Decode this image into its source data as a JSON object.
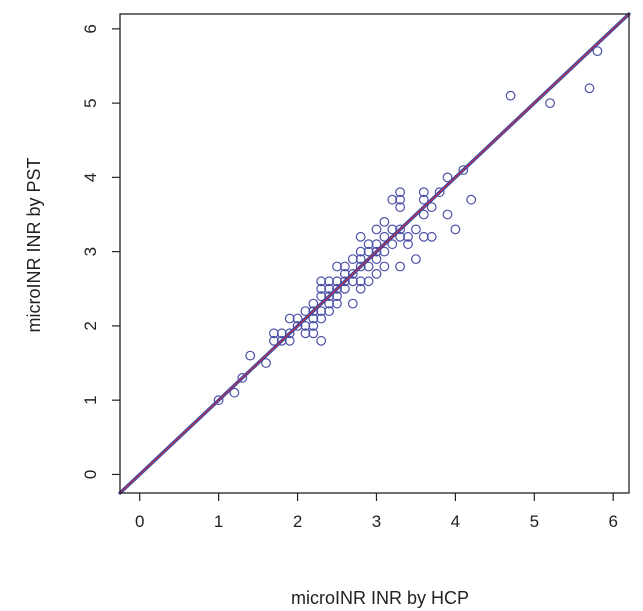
{
  "chart_data": {
    "type": "scatter",
    "title": "",
    "xlabel": "microINR INR by HCP",
    "ylabel": "microINR INR by PST",
    "xlim": [
      -0.25,
      6.2
    ],
    "ylim": [
      -0.25,
      6.2
    ],
    "xticks": [
      0,
      1,
      2,
      3,
      4,
      5,
      6
    ],
    "yticks": [
      0,
      1,
      2,
      3,
      4,
      5,
      6
    ],
    "grid": false,
    "legend": "none",
    "colors": {
      "points": "#4a50a8",
      "line_outer": "#3a4aa8",
      "line_inner": "#c0304a",
      "axes": "#222222"
    },
    "reference_line": {
      "type": "identity",
      "slope": 1,
      "intercept": 0
    },
    "points": [
      [
        1.0,
        1.0
      ],
      [
        1.2,
        1.1
      ],
      [
        1.3,
        1.3
      ],
      [
        1.4,
        1.6
      ],
      [
        1.6,
        1.5
      ],
      [
        1.7,
        1.8
      ],
      [
        1.7,
        1.9
      ],
      [
        1.8,
        1.8
      ],
      [
        1.8,
        1.9
      ],
      [
        1.9,
        1.9
      ],
      [
        1.9,
        2.1
      ],
      [
        1.9,
        1.8
      ],
      [
        2.0,
        2.0
      ],
      [
        2.0,
        2.1
      ],
      [
        2.1,
        2.0
      ],
      [
        2.1,
        2.2
      ],
      [
        2.1,
        1.9
      ],
      [
        2.2,
        2.1
      ],
      [
        2.2,
        2.2
      ],
      [
        2.2,
        2.3
      ],
      [
        2.2,
        2.0
      ],
      [
        2.2,
        1.9
      ],
      [
        2.3,
        2.2
      ],
      [
        2.3,
        2.4
      ],
      [
        2.3,
        2.5
      ],
      [
        2.3,
        2.6
      ],
      [
        2.3,
        2.1
      ],
      [
        2.3,
        1.8
      ],
      [
        2.4,
        2.3
      ],
      [
        2.4,
        2.4
      ],
      [
        2.4,
        2.5
      ],
      [
        2.4,
        2.6
      ],
      [
        2.4,
        2.2
      ],
      [
        2.5,
        2.4
      ],
      [
        2.5,
        2.5
      ],
      [
        2.5,
        2.6
      ],
      [
        2.5,
        2.8
      ],
      [
        2.5,
        2.3
      ],
      [
        2.6,
        2.5
      ],
      [
        2.6,
        2.6
      ],
      [
        2.6,
        2.7
      ],
      [
        2.6,
        2.8
      ],
      [
        2.7,
        2.6
      ],
      [
        2.7,
        2.7
      ],
      [
        2.7,
        2.9
      ],
      [
        2.7,
        2.3
      ],
      [
        2.8,
        2.8
      ],
      [
        2.8,
        2.9
      ],
      [
        2.8,
        3.0
      ],
      [
        2.8,
        3.2
      ],
      [
        2.8,
        2.5
      ],
      [
        2.8,
        2.6
      ],
      [
        2.9,
        2.8
      ],
      [
        2.9,
        3.0
      ],
      [
        2.9,
        3.1
      ],
      [
        2.9,
        2.6
      ],
      [
        3.0,
        2.9
      ],
      [
        3.0,
        3.0
      ],
      [
        3.0,
        3.1
      ],
      [
        3.0,
        3.3
      ],
      [
        3.0,
        2.7
      ],
      [
        3.1,
        3.0
      ],
      [
        3.1,
        3.2
      ],
      [
        3.1,
        3.4
      ],
      [
        3.1,
        2.8
      ],
      [
        3.2,
        3.1
      ],
      [
        3.2,
        3.3
      ],
      [
        3.2,
        3.7
      ],
      [
        3.3,
        3.2
      ],
      [
        3.3,
        3.3
      ],
      [
        3.3,
        3.6
      ],
      [
        3.3,
        3.7
      ],
      [
        3.3,
        3.8
      ],
      [
        3.3,
        2.8
      ],
      [
        3.4,
        3.1
      ],
      [
        3.4,
        3.2
      ],
      [
        3.5,
        3.3
      ],
      [
        3.5,
        2.9
      ],
      [
        3.6,
        3.2
      ],
      [
        3.6,
        3.5
      ],
      [
        3.6,
        3.7
      ],
      [
        3.6,
        3.8
      ],
      [
        3.7,
        3.6
      ],
      [
        3.7,
        3.2
      ],
      [
        3.8,
        3.8
      ],
      [
        3.9,
        4.0
      ],
      [
        3.9,
        3.5
      ],
      [
        4.0,
        3.3
      ],
      [
        4.1,
        4.1
      ],
      [
        4.2,
        3.7
      ],
      [
        4.7,
        5.1
      ],
      [
        5.2,
        5.0
      ],
      [
        5.7,
        5.2
      ],
      [
        5.8,
        5.7
      ]
    ]
  }
}
